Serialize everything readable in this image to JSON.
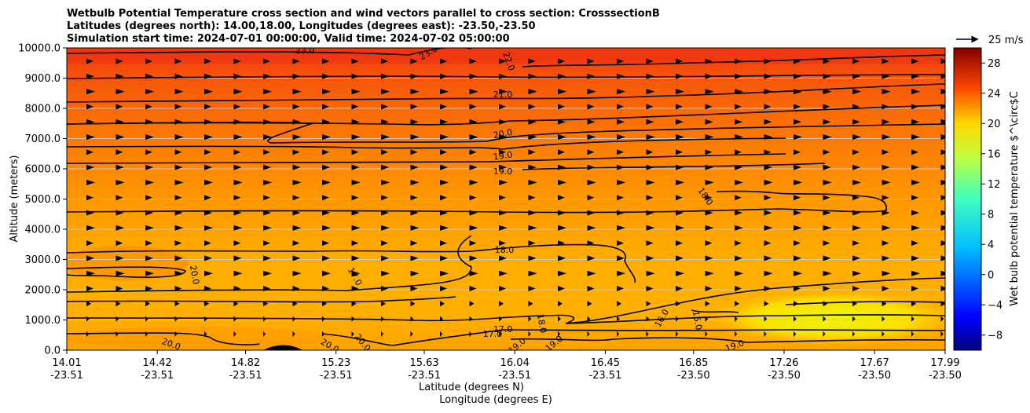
{
  "chart_data": {
    "type": "heatmap",
    "title_lines": [
      "Wetbulb Potential Temperature cross section and wind vectors parallel to cross section: CrosssectionB",
      "Latitudes (degrees north): 14.00,18.00, Longitudes (degrees east): -23.50,-23.50",
      "Simulation start time: 2024-07-01 00:00:00, Valid time: 2024-07-02 05:00:00"
    ],
    "ylabel": "Altitude (meters)",
    "xlabel_lat": "Latitude (degrees N)",
    "xlabel_lon": "Longitude (degrees E)",
    "ylim": [
      0,
      10000
    ],
    "y_ticks": [
      "0.0",
      "1000.0",
      "2000.0",
      "3000.0",
      "4000.0",
      "5000.0",
      "6000.0",
      "7000.0",
      "8000.0",
      "9000.0",
      "10000.0"
    ],
    "x_ticks": [
      {
        "lat": "14.01",
        "lon": "-23.51"
      },
      {
        "lat": "14.42",
        "lon": "-23.51"
      },
      {
        "lat": "14.82",
        "lon": "-23.51"
      },
      {
        "lat": "15.23",
        "lon": "-23.51"
      },
      {
        "lat": "15.63",
        "lon": "-23.51"
      },
      {
        "lat": "16.04",
        "lon": "-23.51"
      },
      {
        "lat": "16.45",
        "lon": "-23.51"
      },
      {
        "lat": "16.85",
        "lon": "-23.50"
      },
      {
        "lat": "17.26",
        "lon": "-23.50"
      },
      {
        "lat": "17.67",
        "lon": "-23.50"
      },
      {
        "lat": "17.99",
        "lon": "-23.50"
      }
    ],
    "xlim": [
      14.01,
      17.99
    ],
    "grid": "horizontal",
    "colorbar": {
      "label": "Wet bulb potential temperature $^\\circ$C",
      "range": [
        -10,
        30
      ],
      "ticks": [
        "−8",
        "−4",
        "0",
        "4",
        "8",
        "12",
        "16",
        "20",
        "24",
        "28"
      ],
      "colormap": "jet"
    },
    "quiver_key": "25 m/s",
    "contour_labels": [
      "23.0",
      "23.0",
      "22.0",
      "21.0",
      "20.0",
      "19.0",
      "19.0",
      "18.0",
      "20.0",
      "18.0",
      "17.0",
      "17.0",
      "18.0",
      "17.0",
      "16.0",
      "15.0",
      "19.0",
      "19.0",
      "19.0",
      "20.0",
      "20.0",
      "20.0"
    ]
  }
}
